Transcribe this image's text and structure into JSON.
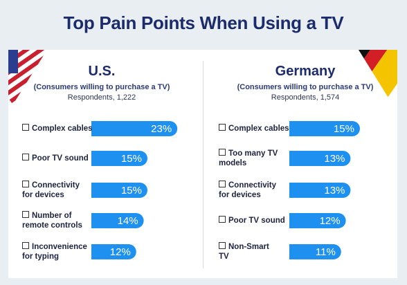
{
  "title": "Top Pain Points When Using a TV",
  "colors": {
    "bar": "#1e90f0",
    "title": "#1b2b6b"
  },
  "us": {
    "name": "U.S.",
    "subtitle": "(Consumers willing to purchase a TV)",
    "respondents": "Respondents, 1,222"
  },
  "germany": {
    "name": "Germany",
    "subtitle": "(Consumers willing to purchase a TV)",
    "respondents": "Respondents, 1,574"
  },
  "chart_data": [
    {
      "type": "bar",
      "title": "U.S.",
      "categories": [
        "Complex cables",
        "Poor TV sound",
        "Connectivity\nfor devices",
        "Number of\nremote controls",
        "Inconvenience\nfor typing"
      ],
      "values": [
        23,
        15,
        15,
        14,
        12
      ],
      "value_labels": [
        "23%",
        "15%",
        "15%",
        "14%",
        "12%"
      ]
    },
    {
      "type": "bar",
      "title": "Germany",
      "categories": [
        "Complex cables",
        "Too many TV\nmodels",
        "Connectivity\nfor devices",
        "Poor TV sound",
        "Non-Smart\nTV"
      ],
      "values": [
        15,
        13,
        13,
        12,
        11
      ],
      "value_labels": [
        "15%",
        "13%",
        "13%",
        "12%",
        "11%"
      ]
    }
  ]
}
